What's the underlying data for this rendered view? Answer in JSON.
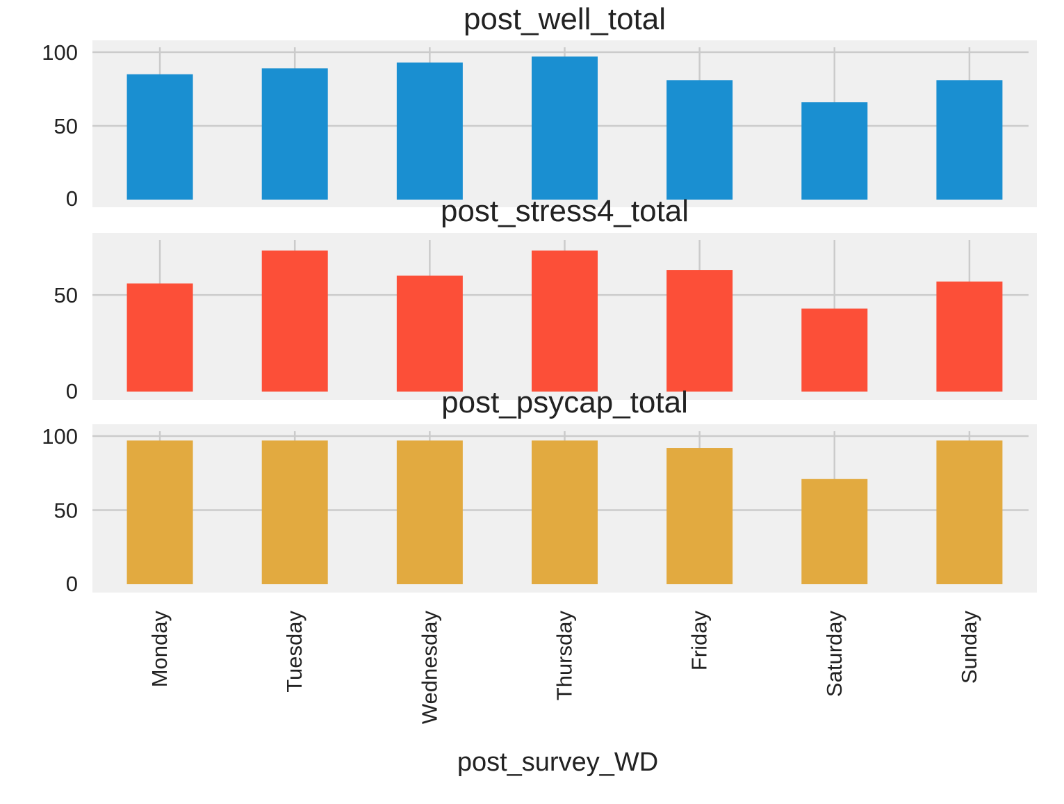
{
  "figure": {
    "background": "#ffffff",
    "axes_background": "#f0f0f0",
    "grid_color": "#cbcbcb"
  },
  "chart_data": [
    {
      "type": "bar",
      "title": "post_well_total",
      "categories": [
        "Monday",
        "Tuesday",
        "Wednesday",
        "Thursday",
        "Friday",
        "Saturday",
        "Sunday"
      ],
      "values": [
        85,
        89,
        93,
        97,
        81,
        66,
        81
      ],
      "color": "#1a8fd1",
      "ylim": [
        0,
        100
      ],
      "yticks": [
        0,
        50,
        100
      ],
      "grid": true,
      "xlabel": "",
      "ylabel": ""
    },
    {
      "type": "bar",
      "title": "post_stress4_total",
      "categories": [
        "Monday",
        "Tuesday",
        "Wednesday",
        "Thursday",
        "Friday",
        "Saturday",
        "Sunday"
      ],
      "values": [
        56,
        73,
        60,
        73,
        63,
        43,
        57
      ],
      "color": "#fc4f38",
      "ylim": [
        0,
        76
      ],
      "yticks": [
        0,
        50
      ],
      "grid": true,
      "xlabel": "",
      "ylabel": ""
    },
    {
      "type": "bar",
      "title": "post_psycap_total",
      "categories": [
        "Monday",
        "Tuesday",
        "Wednesday",
        "Thursday",
        "Friday",
        "Saturday",
        "Sunday"
      ],
      "values": [
        97,
        97,
        97,
        97,
        92,
        71,
        97
      ],
      "color": "#e2aa40",
      "ylim": [
        0,
        100
      ],
      "yticks": [
        0,
        50,
        100
      ],
      "grid": true,
      "xlabel": "post_survey_WD",
      "ylabel": ""
    }
  ]
}
